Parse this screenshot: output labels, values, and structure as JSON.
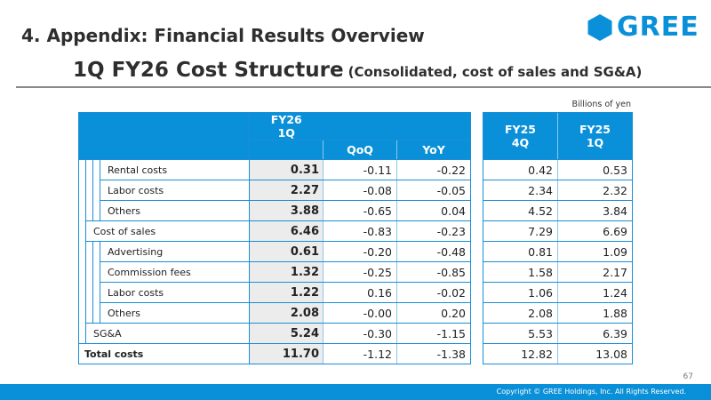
{
  "header": {
    "section_title": "4. Appendix: Financial Results Overview",
    "logo_text": "GREE",
    "slide_title": "1Q FY26 Cost Structure",
    "slide_subtitle": "(Consolidated, cost of sales and SG&A)",
    "unit_note": "Billions of yen"
  },
  "table": {
    "col_fy26": "FY26\n1Q",
    "col_fy26_l1": "FY26",
    "col_fy26_l2": "1Q",
    "col_qoq": "QoQ",
    "col_yoy": "YoY",
    "col_fy25_4q_l1": "FY25",
    "col_fy25_4q_l2": "4Q",
    "col_fy25_1q_l1": "FY25",
    "col_fy25_1q_l2": "1Q",
    "rows": [
      {
        "label": "Rental costs",
        "fy26_1q": "0.31",
        "qoq": "-0.11",
        "yoy": "-0.22",
        "fy25_4q": "0.42",
        "fy25_1q": "0.53"
      },
      {
        "label": "Labor costs",
        "fy26_1q": "2.27",
        "qoq": "-0.08",
        "yoy": "-0.05",
        "fy25_4q": "2.34",
        "fy25_1q": "2.32"
      },
      {
        "label": "Others",
        "fy26_1q": "3.88",
        "qoq": "-0.65",
        "yoy": "0.04",
        "fy25_4q": "4.52",
        "fy25_1q": "3.84"
      },
      {
        "label": "Cost of sales",
        "fy26_1q": "6.46",
        "qoq": "-0.83",
        "yoy": "-0.23",
        "fy25_4q": "7.29",
        "fy25_1q": "6.69"
      },
      {
        "label": "Advertising",
        "fy26_1q": "0.61",
        "qoq": "-0.20",
        "yoy": "-0.48",
        "fy25_4q": "0.81",
        "fy25_1q": "1.09"
      },
      {
        "label": "Commission fees",
        "fy26_1q": "1.32",
        "qoq": "-0.25",
        "yoy": "-0.85",
        "fy25_4q": "1.58",
        "fy25_1q": "2.17"
      },
      {
        "label": "Labor costs",
        "fy26_1q": "1.22",
        "qoq": "0.16",
        "yoy": "-0.02",
        "fy25_4q": "1.06",
        "fy25_1q": "1.24"
      },
      {
        "label": "Others",
        "fy26_1q": "2.08",
        "qoq": "-0.00",
        "yoy": "0.20",
        "fy25_4q": "2.08",
        "fy25_1q": "1.88"
      },
      {
        "label": "SG&A",
        "fy26_1q": "5.24",
        "qoq": "-0.30",
        "yoy": "-1.15",
        "fy25_4q": "5.53",
        "fy25_1q": "6.39"
      },
      {
        "label": "Total costs",
        "fy26_1q": "11.70",
        "qoq": "-1.12",
        "yoy": "-1.38",
        "fy25_4q": "12.82",
        "fy25_1q": "13.08"
      }
    ]
  },
  "footer": {
    "page_number": "67",
    "copyright": "Copyright © GREE Holdings, Inc. All Rights Reserved."
  },
  "colors": {
    "accent": "#0a90d8",
    "highlight_cell": "#ececec"
  }
}
